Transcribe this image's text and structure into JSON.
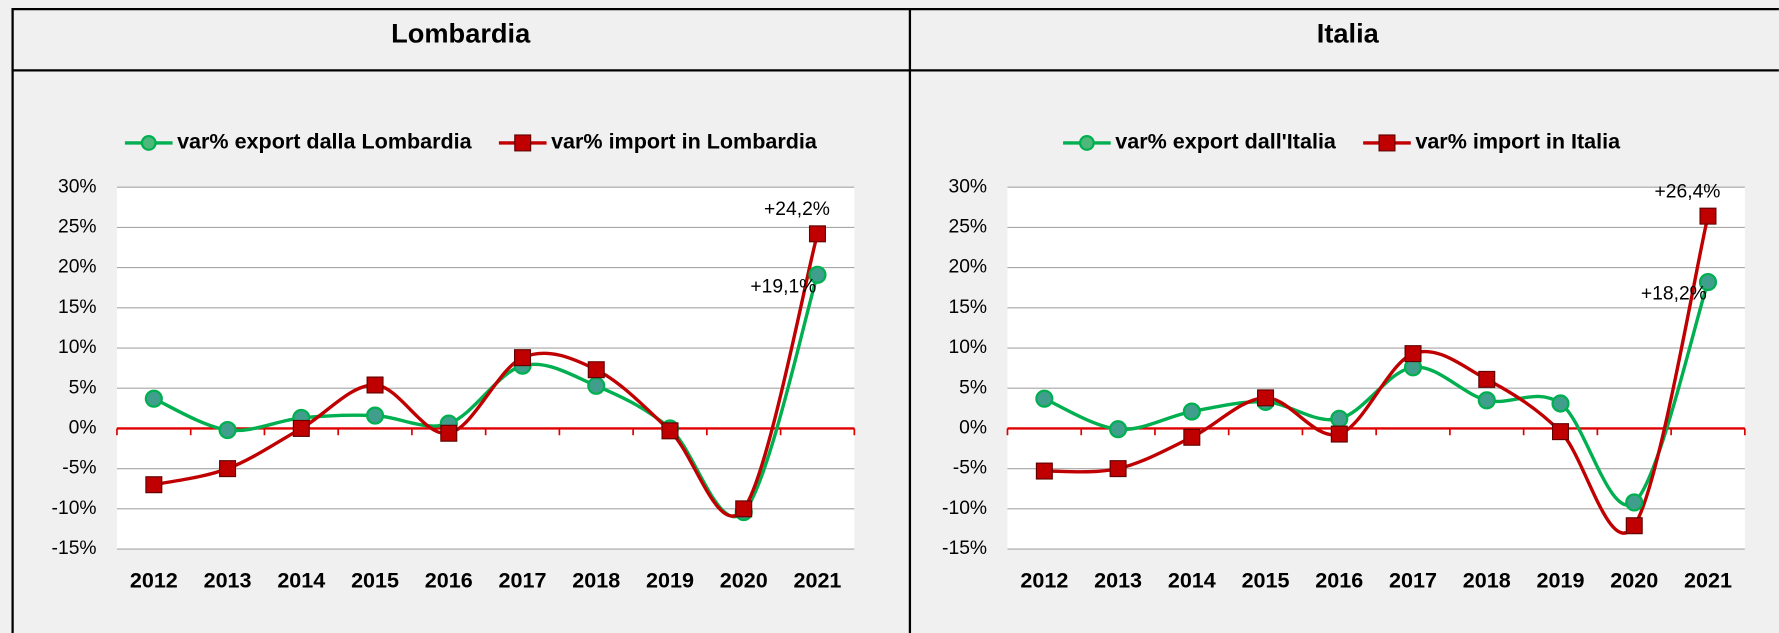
{
  "chart_data": [
    {
      "type": "line",
      "title": "Lombardia",
      "categories": [
        "2012",
        "2013",
        "2014",
        "2015",
        "2016",
        "2017",
        "2018",
        "2019",
        "2020",
        "2021"
      ],
      "series": [
        {
          "name": "var% export dalla Lombardia",
          "color": "#00b050",
          "marker": "circle",
          "values": [
            3.7,
            -0.2,
            1.3,
            1.6,
            0.6,
            7.8,
            5.3,
            0.0,
            -10.4,
            19.1
          ],
          "value_labels": [
            null,
            null,
            null,
            null,
            null,
            null,
            null,
            null,
            null,
            "+19,1%"
          ]
        },
        {
          "name": "var% import in Lombardia",
          "color": "#c00000",
          "marker": "square",
          "values": [
            -7.0,
            -5.0,
            0.0,
            5.4,
            -0.6,
            8.8,
            7.3,
            -0.3,
            -10.0,
            24.2
          ],
          "value_labels": [
            null,
            null,
            null,
            null,
            null,
            null,
            null,
            null,
            null,
            "+24,2%"
          ]
        }
      ],
      "ylim": [
        -15,
        30
      ],
      "yticks": [
        {
          "value": -15,
          "label": "-15%"
        },
        {
          "value": -10,
          "label": "-10%"
        },
        {
          "value": -5,
          "label": "-5%"
        },
        {
          "value": 0,
          "label": "0%"
        },
        {
          "value": 5,
          "label": "5%"
        },
        {
          "value": 10,
          "label": "10%"
        },
        {
          "value": 15,
          "label": "15%"
        },
        {
          "value": 20,
          "label": "20%"
        },
        {
          "value": 25,
          "label": "25%"
        },
        {
          "value": 30,
          "label": "30%"
        }
      ],
      "grid": true,
      "legend": "top"
    },
    {
      "type": "line",
      "title": "Italia",
      "categories": [
        "2012",
        "2013",
        "2014",
        "2015",
        "2016",
        "2017",
        "2018",
        "2019",
        "2020",
        "2021"
      ],
      "series": [
        {
          "name": "var% export dall'Italia",
          "color": "#00b050",
          "marker": "circle",
          "values": [
            3.7,
            -0.1,
            2.1,
            3.3,
            1.2,
            7.6,
            3.5,
            3.1,
            -9.2,
            18.2
          ],
          "value_labels": [
            null,
            null,
            null,
            null,
            null,
            null,
            null,
            null,
            null,
            "+18,2%"
          ]
        },
        {
          "name": "var% import in Italia",
          "color": "#c00000",
          "marker": "square",
          "values": [
            -5.3,
            -5.0,
            -1.1,
            3.8,
            -0.7,
            9.3,
            6.1,
            -0.4,
            -12.1,
            26.4
          ],
          "value_labels": [
            null,
            null,
            null,
            null,
            null,
            null,
            null,
            null,
            null,
            "+26,4%"
          ]
        }
      ],
      "ylim": [
        -15,
        30
      ],
      "yticks": [
        {
          "value": -15,
          "label": "-15%"
        },
        {
          "value": -10,
          "label": "-10%"
        },
        {
          "value": -5,
          "label": "-5%"
        },
        {
          "value": 0,
          "label": "0%"
        },
        {
          "value": 5,
          "label": "5%"
        },
        {
          "value": 10,
          "label": "10%"
        },
        {
          "value": 15,
          "label": "15%"
        },
        {
          "value": 20,
          "label": "20%"
        },
        {
          "value": 25,
          "label": "25%"
        },
        {
          "value": 30,
          "label": "30%"
        }
      ],
      "grid": true,
      "legend": "top"
    }
  ]
}
